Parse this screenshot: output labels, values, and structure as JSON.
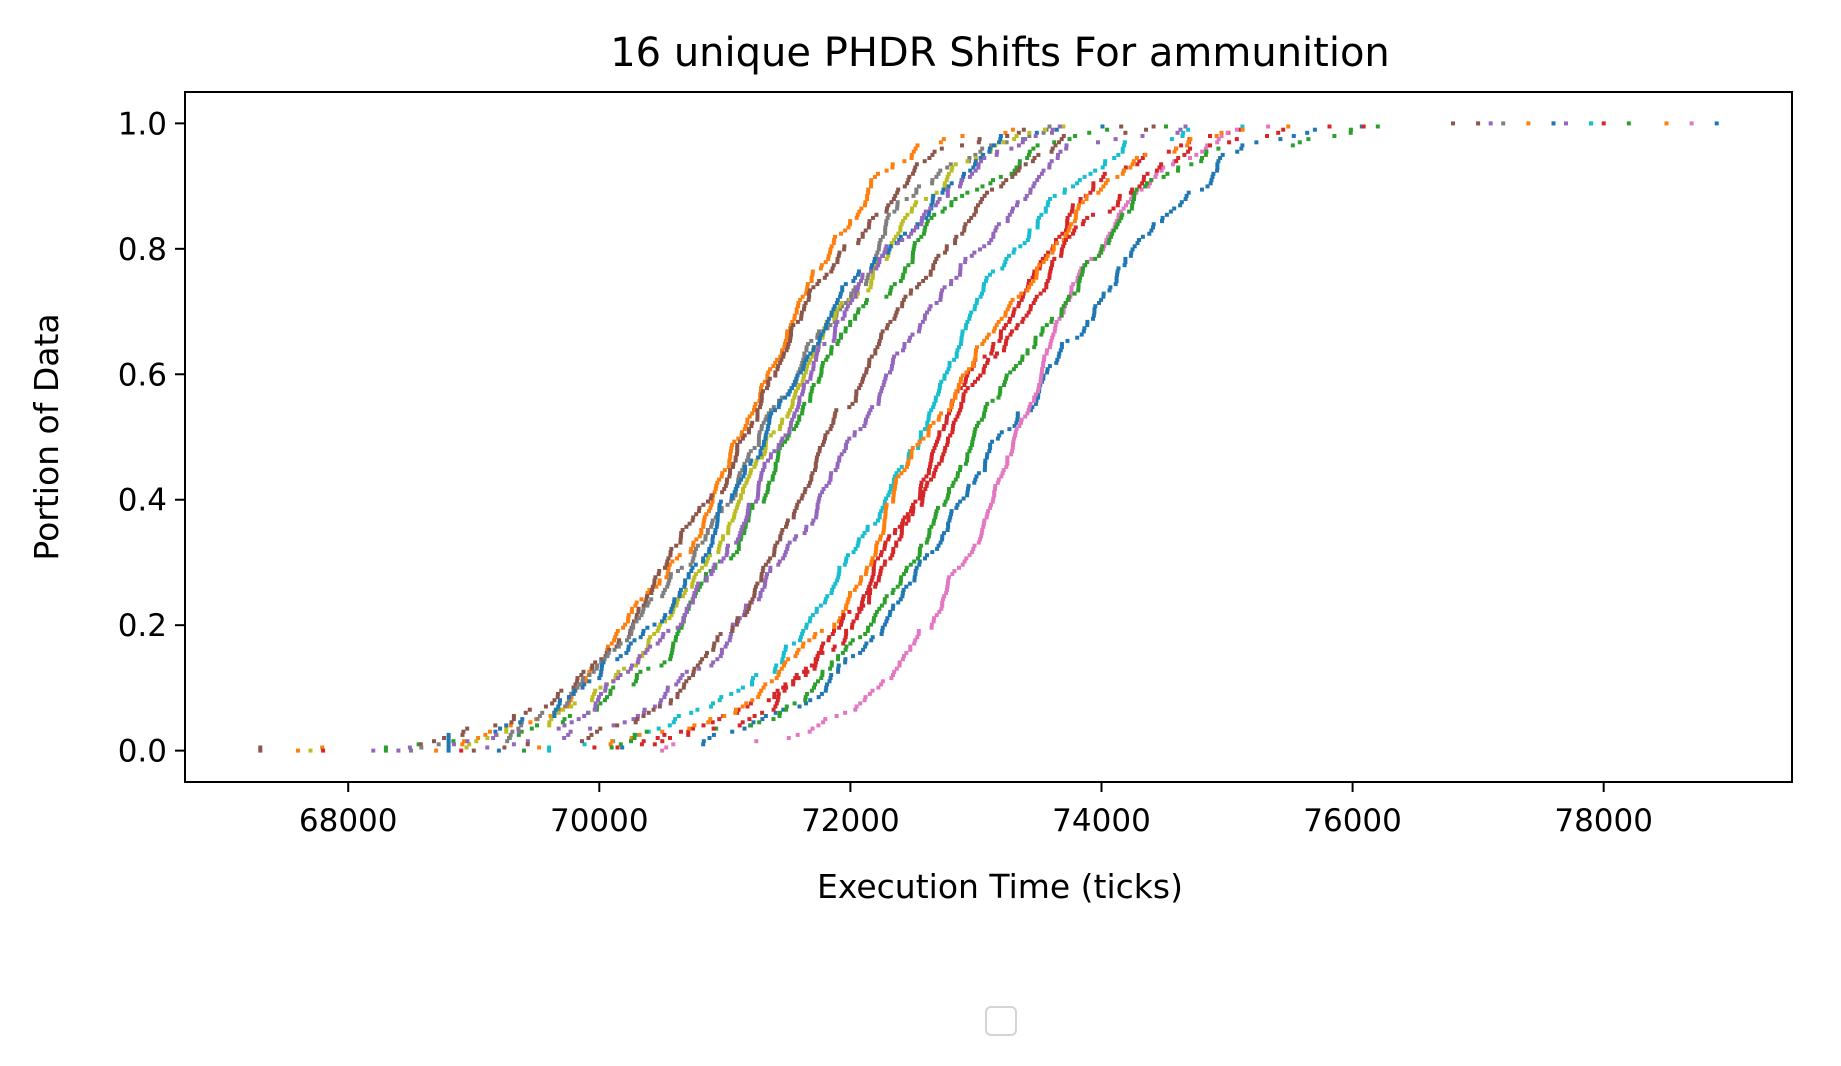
{
  "chart_data": {
    "type": "scatter",
    "title": "16 unique PHDR Shifts For ammunition",
    "xlabel": "Execution Time (ticks)",
    "ylabel": "Portion of Data",
    "xlim": [
      66700,
      79500
    ],
    "ylim": [
      -0.05,
      1.05
    ],
    "xticks": [
      68000,
      70000,
      72000,
      74000,
      76000,
      78000
    ],
    "xtick_labels": [
      "68000",
      "70000",
      "72000",
      "74000",
      "76000",
      "78000"
    ],
    "yticks": [
      0.0,
      0.2,
      0.4,
      0.6,
      0.8,
      1.0
    ],
    "ytick_labels": [
      "0.0",
      "0.2",
      "0.4",
      "0.6",
      "0.8",
      "1.0"
    ],
    "grid": false,
    "legend": "lower-center, empty",
    "series": [
      {
        "color": "#1f77b4",
        "min": 69200,
        "max": 78900,
        "median": 73200,
        "spread": 1150
      },
      {
        "color": "#ff7f0e",
        "min": 67600,
        "max": 78500,
        "median": 71100,
        "spread": 950
      },
      {
        "color": "#2ca02c",
        "min": 68300,
        "max": 77900,
        "median": 71600,
        "spread": 1050
      },
      {
        "color": "#d62728",
        "min": 67800,
        "max": 77600,
        "median": 72650,
        "spread": 1050
      },
      {
        "color": "#9467bd",
        "min": 68200,
        "max": 77700,
        "median": 72100,
        "spread": 1050
      },
      {
        "color": "#8c564b",
        "min": 67300,
        "max": 76800,
        "median": 71000,
        "spread": 1000
      },
      {
        "color": "#e377c2",
        "min": 70500,
        "max": 78700,
        "median": 73300,
        "spread": 950
      },
      {
        "color": "#7f7f7f",
        "min": 68500,
        "max": 77200,
        "median": 71200,
        "spread": 1000
      },
      {
        "color": "#bcbd22",
        "min": 67700,
        "max": 77000,
        "median": 71300,
        "spread": 1050
      },
      {
        "color": "#17becf",
        "min": 69600,
        "max": 77900,
        "median": 72500,
        "spread": 1000
      },
      {
        "color": "#1f77b4",
        "min": 68800,
        "max": 77600,
        "median": 71400,
        "spread": 1000
      },
      {
        "color": "#ff7f0e",
        "min": 68700,
        "max": 77400,
        "median": 72600,
        "spread": 1050
      },
      {
        "color": "#2ca02c",
        "min": 69400,
        "max": 78200,
        "median": 73000,
        "spread": 1100
      },
      {
        "color": "#d62728",
        "min": 68900,
        "max": 78000,
        "median": 72700,
        "spread": 1050
      },
      {
        "color": "#9467bd",
        "min": 68400,
        "max": 77100,
        "median": 71500,
        "spread": 1000
      },
      {
        "color": "#8c564b",
        "min": 69000,
        "max": 77000,
        "median": 71700,
        "spread": 950
      }
    ]
  }
}
